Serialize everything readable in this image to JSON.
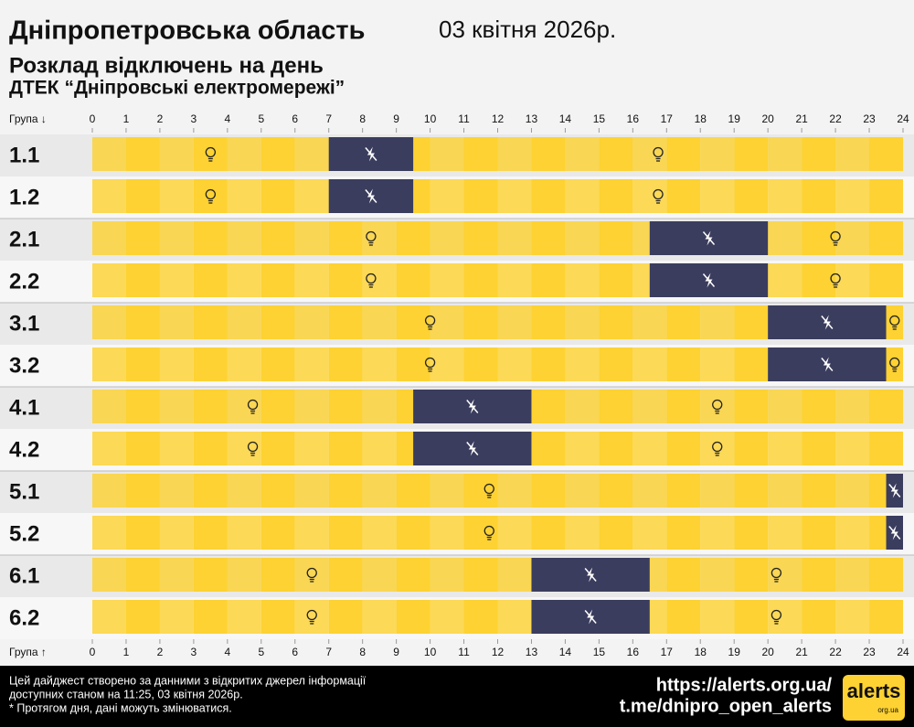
{
  "chart_data": {
    "type": "gantt",
    "title": "Дніпропетровська область",
    "date": "03 квітня 2026р.",
    "subtitle": "Розклад відключень на день",
    "provider": "ДТЕК “Дніпровські електромережі”",
    "axis_label_top": "Група ↓",
    "axis_label_bottom": "Група ↑",
    "xlim": [
      0,
      24
    ],
    "xticks": [
      0,
      1,
      2,
      3,
      4,
      5,
      6,
      7,
      8,
      9,
      10,
      11,
      12,
      13,
      14,
      15,
      16,
      17,
      18,
      19,
      20,
      21,
      22,
      23,
      24
    ],
    "on_color": "#fdd232",
    "off_color": "#3b3d5e",
    "categories": [
      "1.1",
      "1.2",
      "2.1",
      "2.2",
      "3.1",
      "3.2",
      "4.1",
      "4.2",
      "5.1",
      "5.2",
      "6.1",
      "6.2"
    ],
    "outages": [
      {
        "start": 7,
        "end": 9.5
      },
      {
        "start": 7,
        "end": 9.5
      },
      {
        "start": 16.5,
        "end": 20
      },
      {
        "start": 16.5,
        "end": 20
      },
      {
        "start": 20,
        "end": 23.5
      },
      {
        "start": 20,
        "end": 23.5
      },
      {
        "start": 9.5,
        "end": 13
      },
      {
        "start": 9.5,
        "end": 13
      },
      {
        "start": 23.5,
        "end": 24
      },
      {
        "start": 23.5,
        "end": 24
      },
      {
        "start": 13,
        "end": 16.5
      },
      {
        "start": 13,
        "end": 16.5
      }
    ]
  },
  "footer": {
    "note_lines": [
      "Цей дайджест створено за данними з відкритих джерел інформації",
      "доступних станом на 11:25, 03 квітня 2026р.",
      "* Протягом дня, дані можуть змінюватися."
    ],
    "site": "https://alerts.org.ua/",
    "channel": "t.me/dnipro_open_alerts",
    "logo": "alerts",
    "logo_sub": "org.ua"
  }
}
